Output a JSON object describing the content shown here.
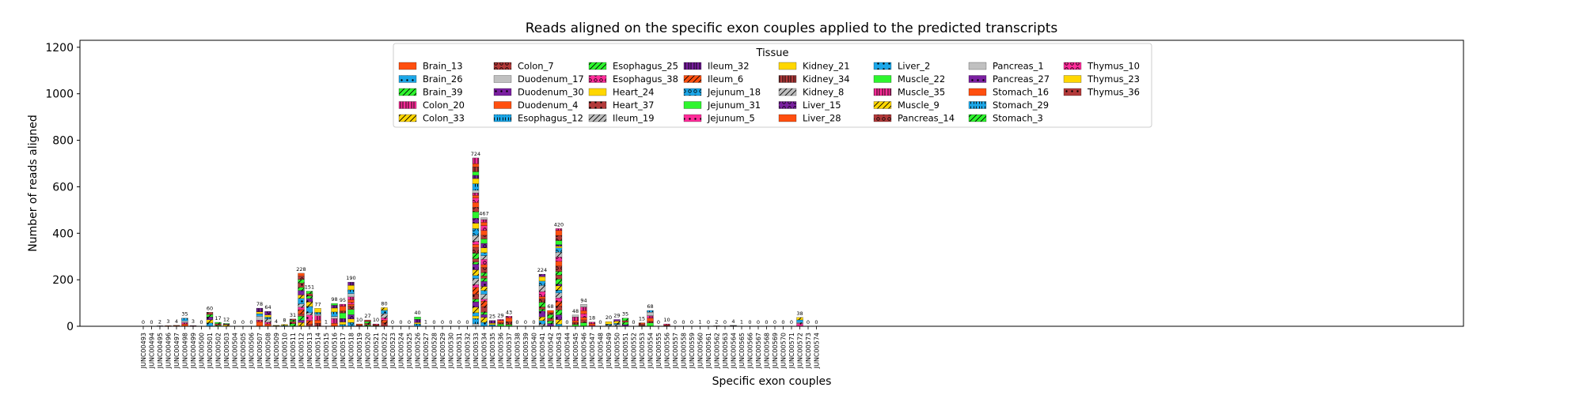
{
  "chart_data": {
    "type": "bar",
    "stacked": true,
    "title": "Reads aligned on the specific exon couples applied to the predicted transcripts",
    "xlabel": "Specific exon couples",
    "ylabel": "Number of reads aligned",
    "ylim": [
      0,
      1230
    ],
    "yticks": [
      0,
      200,
      400,
      600,
      800,
      1000,
      1200
    ],
    "grid": false,
    "legend": {
      "title": "Tissue",
      "placement": "top-center",
      "columns": 8
    },
    "categories": [
      "JUNC00493",
      "JUNC00494",
      "JUNC00495",
      "JUNC00496",
      "JUNC00497",
      "JUNC00498",
      "JUNC00499",
      "JUNC00500",
      "JUNC00501",
      "JUNC00502",
      "JUNC00503",
      "JUNC00504",
      "JUNC00505",
      "JUNC00506",
      "JUNC00507",
      "JUNC00508",
      "JUNC00509",
      "JUNC00510",
      "JUNC00511",
      "JUNC00512",
      "JUNC00513",
      "JUNC00514",
      "JUNC00515",
      "JUNC00516",
      "JUNC00517",
      "JUNC00518",
      "JUNC00519",
      "JUNC00520",
      "JUNC00521",
      "JUNC00522",
      "JUNC00523",
      "JUNC00524",
      "JUNC00525",
      "JUNC00526",
      "JUNC00527",
      "JUNC00528",
      "JUNC00529",
      "JUNC00530",
      "JUNC00531",
      "JUNC00532",
      "JUNC00533",
      "JUNC00534",
      "JUNC00535",
      "JUNC00536",
      "JUNC00537",
      "JUNC00538",
      "JUNC00539",
      "JUNC00540",
      "JUNC00541",
      "JUNC00542",
      "JUNC00543",
      "JUNC00544",
      "JUNC00545",
      "JUNC00546",
      "JUNC00547",
      "JUNC00548",
      "JUNC00549",
      "JUNC00550",
      "JUNC00551",
      "JUNC00552",
      "JUNC00553",
      "JUNC00554",
      "JUNC00555",
      "JUNC00556",
      "JUNC00557",
      "JUNC00558",
      "JUNC00559",
      "JUNC00560",
      "JUNC00561",
      "JUNC00562",
      "JUNC00563",
      "JUNC00564",
      "JUNC00565",
      "JUNC00566",
      "JUNC00567",
      "JUNC00568",
      "JUNC00569",
      "JUNC00570",
      "JUNC00571",
      "JUNC00572",
      "JUNC00573",
      "JUNC00574"
    ],
    "totals": [
      0,
      0,
      2,
      3,
      4,
      35,
      3,
      0,
      60,
      17,
      12,
      0,
      0,
      0,
      78,
      64,
      4,
      8,
      31,
      228,
      151,
      77,
      1,
      98,
      95,
      190,
      10,
      27,
      10,
      80,
      0,
      0,
      0,
      40,
      1,
      0,
      0,
      0,
      0,
      0,
      724,
      467,
      25,
      29,
      43,
      0,
      0,
      0,
      224,
      68,
      420,
      0,
      48,
      94,
      18,
      0,
      20,
      29,
      35,
      0,
      15,
      68,
      0,
      10,
      0,
      0,
      0,
      1,
      0,
      2,
      0,
      4,
      1,
      0,
      0,
      0,
      0,
      0,
      0,
      38,
      0,
      0
    ],
    "series": [
      {
        "name": "Brain_13",
        "color": "#ff4f0f",
        "hatch": "none"
      },
      {
        "name": "Brain_26",
        "color": "#1ca7e8",
        "hatch": "dot"
      },
      {
        "name": "Brain_39",
        "color": "#2ef52e",
        "hatch": "slash"
      },
      {
        "name": "Colon_20",
        "color": "#ff2d9a",
        "hatch": "vbar"
      },
      {
        "name": "Colon_33",
        "color": "#ffd700",
        "hatch": "slash"
      },
      {
        "name": "Colon_7",
        "color": "#b23a3a",
        "hatch": "ring"
      },
      {
        "name": "Duodenum_17",
        "color": "#c0c0c0",
        "hatch": "none"
      },
      {
        "name": "Duodenum_30",
        "color": "#7a1fa0",
        "hatch": "dot"
      },
      {
        "name": "Duodenum_4",
        "color": "#ff4f0f",
        "hatch": "none"
      },
      {
        "name": "Esophagus_12",
        "color": "#1ca7e8",
        "hatch": "bracket"
      },
      {
        "name": "Esophagus_25",
        "color": "#2ef52e",
        "hatch": "slash"
      },
      {
        "name": "Esophagus_38",
        "color": "#ff2d9a",
        "hatch": "ring"
      },
      {
        "name": "Heart_24",
        "color": "#ffd700",
        "hatch": "none"
      },
      {
        "name": "Heart_37",
        "color": "#b23a3a",
        "hatch": "dot"
      },
      {
        "name": "Ileum_19",
        "color": "#c0c0c0",
        "hatch": "slash"
      },
      {
        "name": "Ileum_32",
        "color": "#7a1fa0",
        "hatch": "vbar"
      },
      {
        "name": "Ileum_6",
        "color": "#ff4f0f",
        "hatch": "slash"
      },
      {
        "name": "Jejunum_18",
        "color": "#1ca7e8",
        "hatch": "ring"
      },
      {
        "name": "Jejunum_31",
        "color": "#2ef52e",
        "hatch": "none"
      },
      {
        "name": "Jejunum_5",
        "color": "#ff2d9a",
        "hatch": "dot"
      },
      {
        "name": "Kidney_21",
        "color": "#ffd700",
        "hatch": "none"
      },
      {
        "name": "Kidney_34",
        "color": "#b23a3a",
        "hatch": "vbar"
      },
      {
        "name": "Kidney_8",
        "color": "#c0c0c0",
        "hatch": "slash"
      },
      {
        "name": "Liver_15",
        "color": "#7a1fa0",
        "hatch": "ring"
      },
      {
        "name": "Liver_28",
        "color": "#ff4f0f",
        "hatch": "none"
      },
      {
        "name": "Liver_2",
        "color": "#1ca7e8",
        "hatch": "dot"
      },
      {
        "name": "Muscle_22",
        "color": "#2ef52e",
        "hatch": "none"
      },
      {
        "name": "Muscle_35",
        "color": "#ff2d9a",
        "hatch": "vbar"
      },
      {
        "name": "Muscle_9",
        "color": "#ffd700",
        "hatch": "slash"
      },
      {
        "name": "Pancreas_14",
        "color": "#b23a3a",
        "hatch": "ring"
      },
      {
        "name": "Pancreas_1",
        "color": "#c0c0c0",
        "hatch": "none"
      },
      {
        "name": "Pancreas_27",
        "color": "#7a1fa0",
        "hatch": "dot"
      },
      {
        "name": "Stomach_16",
        "color": "#ff4f0f",
        "hatch": "none"
      },
      {
        "name": "Stomach_29",
        "color": "#1ca7e8",
        "hatch": "bracket"
      },
      {
        "name": "Stomach_3",
        "color": "#2ef52e",
        "hatch": "slash"
      },
      {
        "name": "Thymus_10",
        "color": "#ff2d9a",
        "hatch": "ring"
      },
      {
        "name": "Thymus_23",
        "color": "#ffd700",
        "hatch": "none"
      },
      {
        "name": "Thymus_36",
        "color": "#b23a3a",
        "hatch": "dot"
      }
    ]
  }
}
